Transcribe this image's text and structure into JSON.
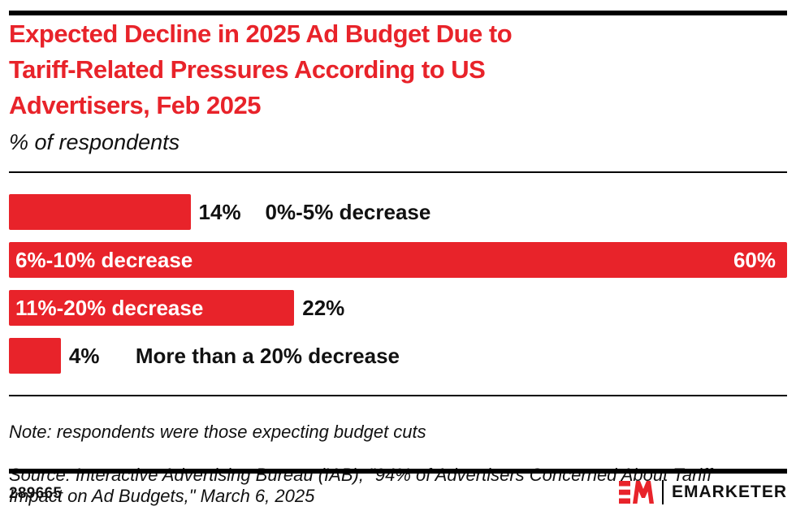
{
  "header": {
    "title": "Expected Decline in 2025 Ad Budget Due to\nTariff-Related Pressures According to US\nAdvertisers, Feb 2025",
    "subtitle": "% of respondents"
  },
  "chart_data": {
    "type": "bar",
    "orientation": "horizontal",
    "title": "Expected Decline in 2025 Ad Budget Due to Tariff-Related Pressures According to US Advertisers, Feb 2025",
    "subtitle": "% of respondents",
    "xlabel": "",
    "ylabel": "",
    "categories": [
      "0%-5% decrease",
      "6%-10% decrease",
      "11%-20% decrease",
      "More than a 20% decrease"
    ],
    "values": [
      14,
      60,
      22,
      4
    ],
    "value_labels": [
      "14%",
      "60%",
      "22%",
      "4%"
    ],
    "xmax": 60,
    "grid": false,
    "legend": "none",
    "bar_color": "#E8232A",
    "label_layout": [
      {
        "category_inside": false,
        "value_inside": false
      },
      {
        "category_inside": true,
        "value_inside": true
      },
      {
        "category_inside": true,
        "value_inside": false
      },
      {
        "category_inside": false,
        "value_inside": false
      }
    ]
  },
  "footnote": {
    "note": "Note: respondents were those expecting budget cuts",
    "source": "Source: Interactive Advertising Bureau (IAB), \"94% of Advertisers Concerned About Tariff\nImpact on Ad Budgets,\" March 6, 2025"
  },
  "footer": {
    "chart_id": "289665",
    "brand_name": "EMARKETER"
  },
  "colors": {
    "accent_red": "#E8232A",
    "text_black": "#111111",
    "bar_text_white": "#ffffff"
  }
}
